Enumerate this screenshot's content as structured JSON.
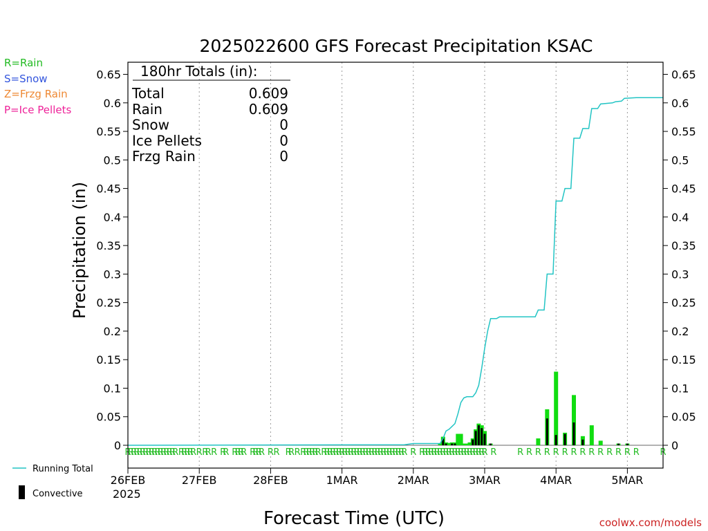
{
  "legend_codes": [
    {
      "label": "R=Rain",
      "color": "#22bb22"
    },
    {
      "label": "S=Snow",
      "color": "#3355dd"
    },
    {
      "label": "Z=Frzg Rain",
      "color": "#ee8833"
    },
    {
      "label": "P=Ice Pellets",
      "color": "#ee2299"
    }
  ],
  "totals_box": {
    "heading": "180hr Totals (in):",
    "rows": [
      {
        "label": "Total",
        "value": "0.609"
      },
      {
        "label": "Rain",
        "value": "0.609"
      },
      {
        "label": "Snow",
        "value": "0"
      },
      {
        "label": "Ice Pellets",
        "value": "0"
      },
      {
        "label": "Frzg Rain",
        "value": "0"
      }
    ]
  },
  "bottom_legend": {
    "running_total": "Running Total",
    "convective": "Convective"
  },
  "year_label": "2025",
  "credit": "coolwx.com/models",
  "colors": {
    "running_total": "#22c4c4",
    "rain_bar": "#11dd11",
    "convective_bar": "#000000",
    "rain_code": "#22bb22",
    "grid": "#999999"
  },
  "chart_data": {
    "type": "bar",
    "title": "2025022600 GFS Forecast Precipitation KSAC",
    "xlabel": "Forecast Time (UTC)",
    "ylabel": "Precipitation (in)",
    "ylim": [
      0,
      0.66
    ],
    "yticks": [
      0,
      0.05,
      0.1,
      0.15,
      0.2,
      0.25,
      0.3,
      0.35,
      0.4,
      0.45,
      0.5,
      0.55,
      0.6,
      0.65
    ],
    "ytick_labels": [
      "0",
      "0.05",
      "0.1",
      "0.15",
      "0.2",
      "0.25",
      "0.3",
      "0.35",
      "0.4",
      "0.45",
      "0.5",
      "0.55",
      "0.6",
      "0.65"
    ],
    "x_unit": "forecast hour",
    "xlim": [
      0,
      180
    ],
    "xticks": [
      0,
      24,
      48,
      72,
      96,
      120,
      144,
      168
    ],
    "xtick_labels": [
      "26FEB",
      "27FEB",
      "28FEB",
      "1MAR",
      "2MAR",
      "3MAR",
      "4MAR",
      "5MAR"
    ],
    "grid": true,
    "running_total": {
      "name": "Running Total",
      "points": [
        [
          0,
          0
        ],
        [
          93,
          0.001
        ],
        [
          96,
          0.003
        ],
        [
          105,
          0.003
        ],
        [
          106,
          0.012
        ],
        [
          107,
          0.025
        ],
        [
          108,
          0.028
        ],
        [
          109,
          0.033
        ],
        [
          110,
          0.038
        ],
        [
          111,
          0.055
        ],
        [
          112,
          0.075
        ],
        [
          113,
          0.083
        ],
        [
          114,
          0.085
        ],
        [
          116,
          0.085
        ],
        [
          117,
          0.092
        ],
        [
          118,
          0.105
        ],
        [
          119,
          0.135
        ],
        [
          120,
          0.17
        ],
        [
          121,
          0.2
        ],
        [
          122,
          0.222
        ],
        [
          124,
          0.222
        ],
        [
          125,
          0.225
        ],
        [
          137,
          0.225
        ],
        [
          138,
          0.237
        ],
        [
          140,
          0.237
        ],
        [
          141,
          0.3
        ],
        [
          143,
          0.3
        ],
        [
          144,
          0.428
        ],
        [
          146,
          0.428
        ],
        [
          147,
          0.45
        ],
        [
          149,
          0.45
        ],
        [
          150,
          0.538
        ],
        [
          152,
          0.538
        ],
        [
          153,
          0.555
        ],
        [
          155,
          0.555
        ],
        [
          156,
          0.59
        ],
        [
          158,
          0.59
        ],
        [
          159,
          0.598
        ],
        [
          163,
          0.6
        ],
        [
          164,
          0.602
        ],
        [
          166,
          0.603
        ],
        [
          167,
          0.608
        ],
        [
          171,
          0.609
        ],
        [
          180,
          0.609
        ]
      ]
    },
    "series": [
      {
        "name": "Rain",
        "points": [
          [
            105,
            0.003
          ],
          [
            106,
            0.015
          ],
          [
            107,
            0.005
          ],
          [
            108,
            0.004
          ],
          [
            109,
            0.005
          ],
          [
            110,
            0.005
          ],
          [
            111,
            0.02
          ],
          [
            112,
            0.02
          ],
          [
            113,
            0.003
          ],
          [
            114,
            0.003
          ],
          [
            115,
            0.005
          ],
          [
            116,
            0.012
          ],
          [
            117,
            0.028
          ],
          [
            118,
            0.038
          ],
          [
            119,
            0.035
          ],
          [
            120,
            0.025
          ],
          [
            122,
            0.003
          ],
          [
            138,
            0.012
          ],
          [
            141,
            0.063
          ],
          [
            144,
            0.129
          ],
          [
            147,
            0.022
          ],
          [
            150,
            0.088
          ],
          [
            153,
            0.016
          ],
          [
            156,
            0.035
          ],
          [
            159,
            0.008
          ],
          [
            165,
            0.003
          ],
          [
            168,
            0.003
          ]
        ]
      },
      {
        "name": "Convective",
        "points": [
          [
            106,
            0.012
          ],
          [
            107,
            0.003
          ],
          [
            109,
            0.003
          ],
          [
            110,
            0.003
          ],
          [
            116,
            0.01
          ],
          [
            117,
            0.025
          ],
          [
            118,
            0.035
          ],
          [
            119,
            0.03
          ],
          [
            120,
            0.02
          ],
          [
            122,
            0.003
          ],
          [
            141,
            0.047
          ],
          [
            144,
            0.018
          ],
          [
            147,
            0.02
          ],
          [
            150,
            0.04
          ],
          [
            153,
            0.01
          ],
          [
            165,
            0.003
          ],
          [
            168,
            0.003
          ]
        ]
      }
    ],
    "ptype_codes": {
      "symbol": "R",
      "hours": [
        0,
        1,
        2,
        3,
        4,
        5,
        6,
        7,
        8,
        9,
        10,
        11,
        12,
        13,
        14,
        15,
        16,
        18,
        19,
        20,
        21,
        22,
        24,
        26,
        27,
        29,
        32,
        33,
        36,
        37,
        38,
        39,
        42,
        43,
        44,
        45,
        48,
        50,
        54,
        55,
        57,
        59,
        60,
        61,
        62,
        63,
        64,
        66,
        67,
        68,
        69,
        70,
        71,
        72,
        73,
        74,
        75,
        76,
        77,
        78,
        79,
        80,
        81,
        82,
        83,
        84,
        85,
        86,
        87,
        88,
        89,
        90,
        91,
        92,
        93,
        96,
        99,
        100,
        101,
        102,
        103,
        104,
        105,
        106,
        107,
        108,
        109,
        110,
        111,
        112,
        113,
        114,
        115,
        116,
        117,
        118,
        119,
        120,
        123,
        132,
        135,
        138,
        141,
        144,
        147,
        150,
        153,
        156,
        159,
        162,
        165,
        168,
        171,
        180
      ]
    }
  }
}
